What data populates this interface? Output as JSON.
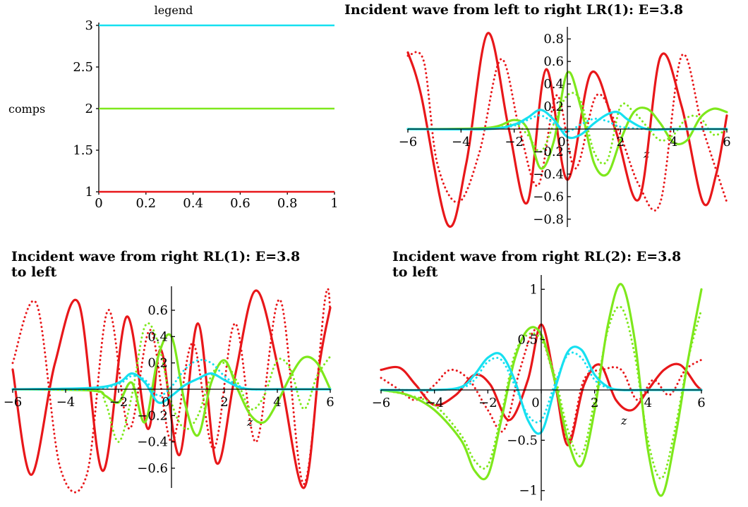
{
  "chart_data": [
    {
      "id": "legend",
      "type": "line",
      "title": "legend",
      "xlabel": "",
      "ylabel": "comps",
      "xlim": [
        0,
        1
      ],
      "ylim": [
        1,
        3
      ],
      "x_ticks": [
        "0",
        "0.2",
        "0.4",
        "0.6",
        "0.8",
        "1"
      ],
      "y_ticks": [
        "1",
        "1.5",
        "2",
        "2.5",
        "3"
      ],
      "series": [
        {
          "value": 1,
          "color": "#e8171a"
        },
        {
          "value": 2,
          "color": "#7ee81c"
        },
        {
          "value": 3,
          "color": "#16e0f0"
        }
      ]
    },
    {
      "id": "lr1",
      "type": "line",
      "title": "Incident wave from left to right  LR(1): E=3.8",
      "xlabel": "z",
      "ylabel": "",
      "xlim": [
        -6,
        6
      ],
      "ylim": [
        -0.87,
        0.87
      ],
      "x_ticks": [
        "−6",
        "−4",
        "−2",
        "0",
        "2",
        "4",
        "6"
      ],
      "y_ticks": [
        "0.8",
        "0.6",
        "0.4",
        "0.2",
        "−0.2",
        "−0.4",
        "−0.6",
        "−0.8"
      ],
      "series": [
        {
          "color": "#e8171a",
          "style": "solid",
          "x": [
            -6,
            -5.5,
            -4.5,
            -3.8,
            -3,
            -2.2,
            -1.5,
            -0.8,
            0,
            0.9,
            1.8,
            2.7,
            3.5,
            4.3,
            5.1,
            5.6,
            6
          ],
          "y": [
            0.68,
            0.3,
            -0.85,
            -0.3,
            0.85,
            0,
            -0.65,
            0.53,
            -0.45,
            0.5,
            0,
            -0.62,
            0.64,
            0.2,
            -0.65,
            -0.4,
            0.12
          ]
        },
        {
          "color": "#e8171a",
          "style": "dotted",
          "x": [
            -6,
            -5.4,
            -4.9,
            -4.1,
            -3.3,
            -2.5,
            -1.8,
            -1.1,
            -0.4,
            0.3,
            1.1,
            1.9,
            2.7,
            3.5,
            4.3,
            5.1,
            6
          ],
          "y": [
            0.65,
            0.6,
            -0.3,
            -0.65,
            -0.2,
            0.62,
            0,
            -0.5,
            0.3,
            -0.35,
            0.3,
            0,
            -0.5,
            -0.65,
            0.65,
            0,
            -0.65
          ]
        },
        {
          "color": "#7ee81c",
          "style": "solid",
          "x": [
            -6,
            -3,
            -2,
            -1.5,
            -1,
            -0.5,
            0,
            0.5,
            1,
            1.5,
            2,
            2.5,
            3,
            3.5,
            4,
            4.5,
            5,
            5.5,
            6
          ],
          "y": [
            0,
            0.01,
            0.08,
            0,
            -0.35,
            -0.1,
            0.5,
            0.2,
            -0.3,
            -0.4,
            -0.1,
            0.15,
            0.18,
            0.05,
            -0.12,
            -0.1,
            0.1,
            0.18,
            0.15
          ]
        },
        {
          "color": "#7ee81c",
          "style": "dotted",
          "x": [
            -6,
            -3,
            -2,
            -1.5,
            -1,
            -0.5,
            0,
            0.5,
            1,
            1.5,
            2,
            2.5,
            3,
            3.5,
            4,
            4.5,
            5,
            5.5,
            6
          ],
          "y": [
            0,
            0,
            0.04,
            -0.05,
            -0.2,
            0.05,
            0.3,
            0.25,
            -0.2,
            -0.28,
            0.2,
            0.15,
            0.02,
            -0.1,
            -0.05,
            0.1,
            0.1,
            -0.05,
            0
          ]
        },
        {
          "color": "#16e0f0",
          "style": "solid",
          "x": [
            -6,
            -3,
            -2,
            -1.5,
            -1,
            -0.5,
            0,
            0.5,
            1,
            1.5,
            1.9,
            2.3,
            3,
            4,
            5,
            6
          ],
          "y": [
            0,
            0,
            0.04,
            0.1,
            0.17,
            0.08,
            -0.07,
            -0.05,
            0.05,
            0.13,
            0.15,
            0.08,
            0,
            0,
            0,
            0
          ]
        },
        {
          "color": "#16e0f0",
          "style": "dotted",
          "x": [
            -6,
            -3,
            -2,
            -1.5,
            -1,
            -0.5,
            0,
            0.5,
            1,
            1.5,
            2,
            3,
            4,
            5,
            6
          ],
          "y": [
            0,
            0,
            0.03,
            0.08,
            0.12,
            0.05,
            -0.02,
            0.04,
            0.09,
            0.07,
            0.02,
            0,
            0,
            0,
            0
          ]
        }
      ]
    },
    {
      "id": "rl1",
      "type": "line",
      "title": "Incident wave from right  RL(1): E=3.8",
      "title_line2": "to left",
      "xlabel": "z",
      "ylabel": "",
      "xlim": [
        -6,
        6
      ],
      "ylim": [
        -0.75,
        0.75
      ],
      "x_ticks": [
        "−6",
        "−4",
        "−2",
        "0",
        "2",
        "4",
        "6"
      ],
      "y_ticks": [
        "0.6",
        "0.4",
        "0.2",
        "−0.2",
        "−0.4",
        "−0.6"
      ],
      "series": [
        {
          "color": "#e8171a",
          "style": "solid",
          "x": [
            -6,
            -5.3,
            -4.4,
            -3.5,
            -2.6,
            -1.7,
            -0.9,
            -0.4,
            0.3,
            1,
            1.7,
            2.4,
            3.2,
            4.1,
            5,
            5.6,
            6
          ],
          "y": [
            0.15,
            -0.65,
            0.2,
            0.65,
            -0.62,
            0.55,
            -0.3,
            0.3,
            -0.5,
            0.5,
            -0.56,
            0.1,
            0.75,
            0.1,
            -0.75,
            0.2,
            0.62
          ]
        },
        {
          "color": "#e8171a",
          "style": "dotted",
          "x": [
            -6,
            -5.1,
            -4.2,
            -3.2,
            -2.4,
            -1.6,
            -0.8,
            0,
            0.8,
            1.6,
            2.4,
            3.2,
            4.1,
            5,
            5.8,
            6
          ],
          "y": [
            0.2,
            0.65,
            -0.6,
            -0.65,
            0.6,
            -0.3,
            0.45,
            -0.4,
            0.35,
            -0.45,
            0.5,
            -0.4,
            0.68,
            -0.72,
            0.68,
            0.6
          ]
        },
        {
          "color": "#7ee81c",
          "style": "solid",
          "x": [
            -6,
            -3,
            -2.5,
            -2,
            -1.5,
            -1,
            -0.5,
            0,
            0.5,
            1,
            1.5,
            2,
            2.5,
            3,
            3.5,
            4,
            4.5,
            5,
            5.5,
            6
          ],
          "y": [
            0,
            -0.01,
            -0.05,
            -0.1,
            0.05,
            -0.25,
            0.25,
            0.4,
            -0.1,
            -0.35,
            0.05,
            0.22,
            0,
            -0.2,
            -0.25,
            -0.1,
            0.1,
            0.24,
            0.2,
            0
          ]
        },
        {
          "color": "#7ee81c",
          "style": "dotted",
          "x": [
            -6,
            -3,
            -2.5,
            -2,
            -1.5,
            -1,
            -0.5,
            0,
            0.5,
            1,
            1.5,
            2,
            2.5,
            3,
            3.5,
            4,
            4.5,
            5,
            5.5,
            6
          ],
          "y": [
            0,
            -0.01,
            -0.1,
            -0.4,
            -0.05,
            0.48,
            0.35,
            -0.1,
            -0.3,
            -0.2,
            0.1,
            0.2,
            0.05,
            -0.15,
            -0.05,
            0.22,
            0.15,
            -0.15,
            0.1,
            0.25
          ]
        },
        {
          "color": "#16e0f0",
          "style": "solid",
          "x": [
            -6,
            -3,
            -2,
            -1.5,
            -1,
            -0.5,
            0,
            0.5,
            1,
            1.5,
            2,
            2.5,
            3,
            4,
            5,
            6
          ],
          "y": [
            0,
            0.01,
            0.05,
            0.12,
            0.05,
            -0.1,
            -0.05,
            0.03,
            0.08,
            0.12,
            0.07,
            0.02,
            0,
            0,
            0,
            0
          ]
        },
        {
          "color": "#16e0f0",
          "style": "dotted",
          "x": [
            -6,
            -3,
            -2,
            -1.5,
            -1,
            -0.5,
            0,
            0.5,
            1,
            1.5,
            2,
            2.5,
            3,
            4,
            5,
            6
          ],
          "y": [
            0,
            0,
            0.04,
            0.1,
            0.07,
            -0.05,
            0.02,
            0.15,
            0.22,
            0.2,
            0.1,
            0.03,
            0,
            0,
            0,
            0
          ]
        }
      ]
    },
    {
      "id": "rl2",
      "type": "line",
      "title": "Incident wave from right  RL(2): E=3.8",
      "title_line2": "to left",
      "xlabel": "z",
      "ylabel": "",
      "xlim": [
        -6,
        6
      ],
      "ylim": [
        -1.1,
        1.1
      ],
      "x_ticks": [
        "−6",
        "−4",
        "−2",
        "0",
        "2",
        "4",
        "6"
      ],
      "y_ticks": [
        "1",
        "0.5",
        "−0.5",
        "−1"
      ],
      "series": [
        {
          "color": "#e8171a",
          "style": "solid",
          "x": [
            -6,
            -5.3,
            -4.7,
            -4,
            -3.2,
            -2.5,
            -1.9,
            -1.2,
            -0.5,
            0,
            0.5,
            1,
            1.6,
            2.2,
            2.8,
            3.4,
            4,
            4.6,
            5.2,
            5.8,
            6
          ],
          "y": [
            0.2,
            0.22,
            0.05,
            -0.15,
            -0.05,
            0.15,
            0.05,
            -0.3,
            0.1,
            0.65,
            0.1,
            -0.55,
            0.05,
            0.25,
            -0.1,
            -0.2,
            0,
            0.2,
            0.25,
            0.05,
            0
          ]
        },
        {
          "color": "#e8171a",
          "style": "dotted",
          "x": [
            -6,
            -5.3,
            -4.7,
            -4,
            -3.4,
            -2.7,
            -2,
            -1.4,
            -0.8,
            -0.2,
            0.4,
            1,
            1.6,
            2.3,
            3,
            3.6,
            4.2,
            4.8,
            5.4,
            6
          ],
          "y": [
            0.12,
            0,
            -0.1,
            0.05,
            0.2,
            0.1,
            -0.2,
            -0.4,
            0.2,
            0.6,
            0.2,
            -0.5,
            0.1,
            0.2,
            0.2,
            -0.1,
            0.1,
            -0.05,
            0.2,
            0.3
          ]
        },
        {
          "color": "#7ee81c",
          "style": "solid",
          "x": [
            -6,
            -5,
            -4,
            -3,
            -2.5,
            -2,
            -1.5,
            -1,
            -0.5,
            0,
            0.5,
            1,
            1.5,
            2,
            2.5,
            3,
            3.5,
            4,
            4.5,
            5,
            5.5,
            6
          ],
          "y": [
            0,
            -0.05,
            -0.2,
            -0.5,
            -0.8,
            -0.85,
            -0.3,
            0.3,
            0.6,
            0.55,
            0.1,
            -0.5,
            -0.75,
            -0.2,
            0.65,
            1.05,
            0.5,
            -0.6,
            -1.05,
            -0.5,
            0.3,
            1.0
          ]
        },
        {
          "color": "#7ee81c",
          "style": "dotted",
          "x": [
            -6,
            -5,
            -4,
            -3,
            -2.5,
            -2,
            -1.5,
            -1,
            -0.5,
            0,
            0.5,
            1,
            1.5,
            2,
            2.5,
            3,
            3.5,
            4,
            4.5,
            5,
            5.5,
            6
          ],
          "y": [
            0,
            -0.05,
            -0.15,
            -0.45,
            -0.7,
            -0.75,
            -0.25,
            0.35,
            0.55,
            0.5,
            0.15,
            -0.4,
            -0.65,
            -0.1,
            0.6,
            0.82,
            0.35,
            -0.5,
            -0.88,
            -0.4,
            0.3,
            0.8
          ]
        },
        {
          "color": "#16e0f0",
          "style": "solid",
          "x": [
            -6,
            -4,
            -3,
            -2.5,
            -2,
            -1.5,
            -1,
            -0.5,
            0,
            0.5,
            1,
            1.5,
            2,
            2.5,
            3,
            4,
            5,
            6
          ],
          "y": [
            0,
            0,
            0.03,
            0.15,
            0.32,
            0.35,
            0.1,
            -0.3,
            -0.42,
            0,
            0.38,
            0.4,
            0.15,
            0.03,
            0,
            0,
            0,
            0
          ]
        },
        {
          "color": "#16e0f0",
          "style": "dotted",
          "x": [
            -6,
            -4,
            -3,
            -2.5,
            -2,
            -1.5,
            -1,
            -0.5,
            0,
            0.5,
            1,
            1.5,
            2,
            2.5,
            3,
            4,
            5,
            6
          ],
          "y": [
            0,
            0,
            0.02,
            0.1,
            0.28,
            0.3,
            0.05,
            -0.25,
            -0.3,
            0.05,
            0.35,
            0.32,
            0.1,
            0.02,
            0,
            0,
            0,
            0
          ]
        }
      ]
    }
  ]
}
